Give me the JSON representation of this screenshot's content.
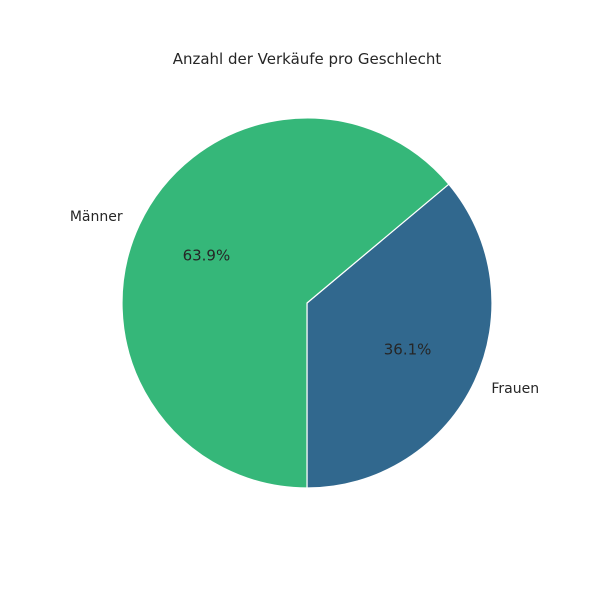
{
  "chart_data": {
    "type": "pie",
    "title": "Anzahl der Verkäufe pro Geschlecht",
    "labels": [
      "Frauen",
      "Männer"
    ],
    "values": [
      36.1,
      63.9
    ],
    "value_labels": [
      "36.1%",
      "63.9%"
    ],
    "colors": [
      "#31688e",
      "#35b779"
    ],
    "start_angle_deg": 270,
    "direction": "counterclockwise"
  }
}
